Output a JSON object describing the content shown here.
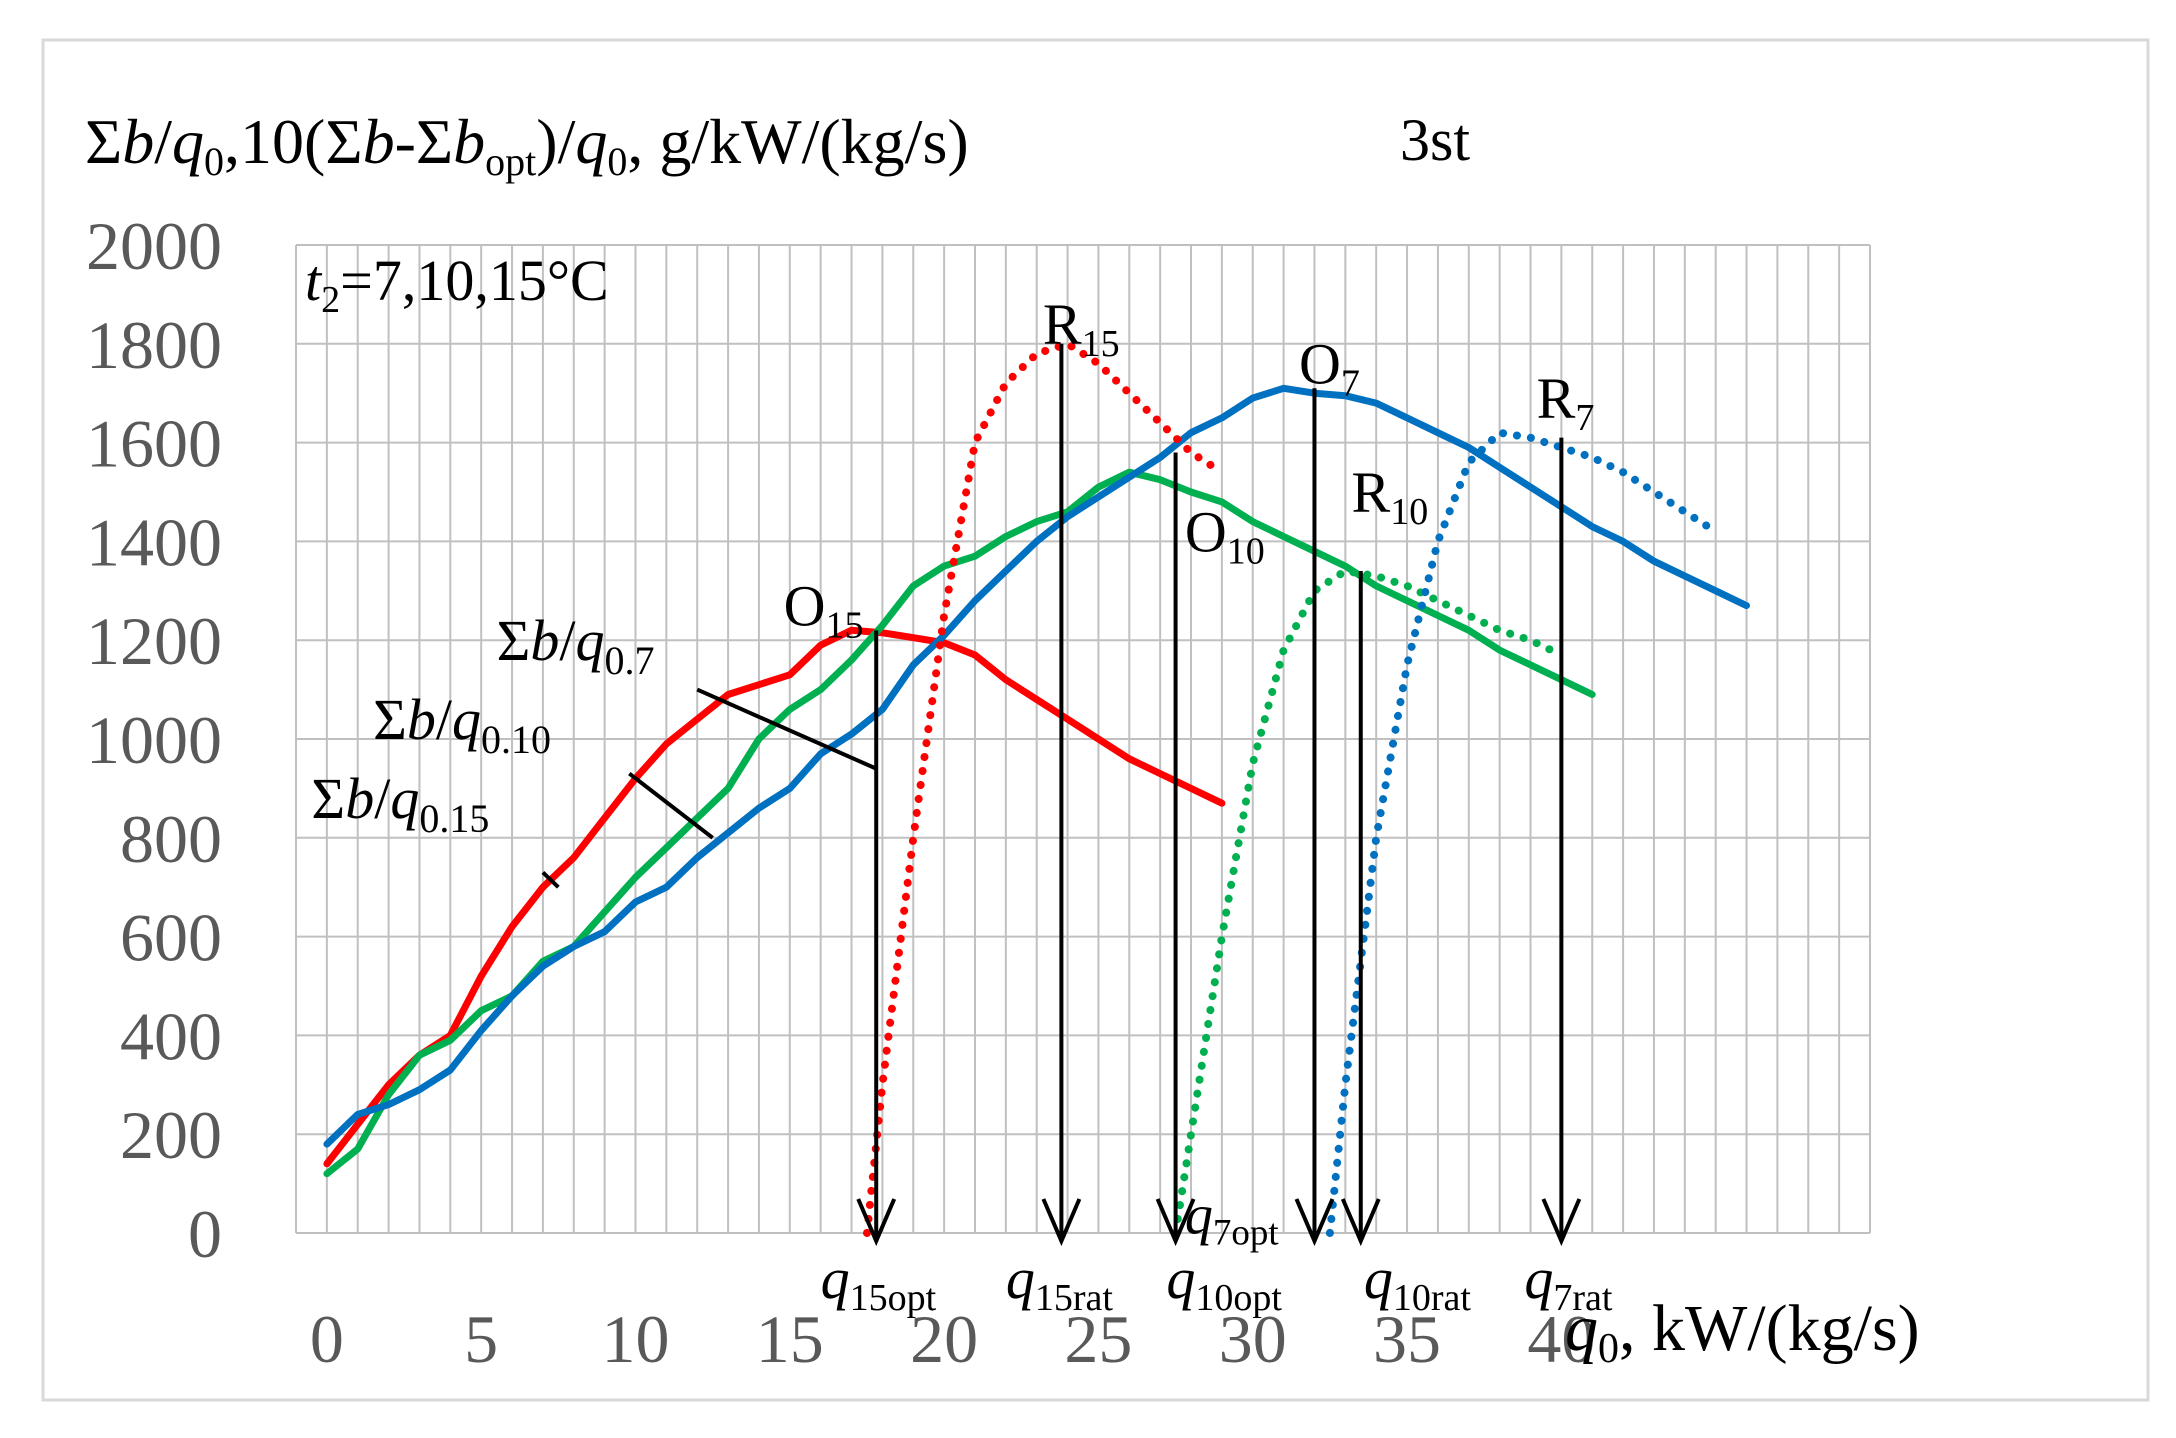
{
  "chart_data": {
    "type": "line",
    "title": "3st",
    "ylabel": {
      "p1": "Σ",
      "p2": "b",
      "p3": "/",
      "p4": "q",
      "p5": "0",
      "p6": ",10(Σ",
      "p7": "b",
      "p8": "-Σ",
      "p9": "b",
      "p10": "opt",
      "p11": ")/",
      "p12": "q",
      "p13": "0",
      "p14": ", g/kW/(kg/s)"
    },
    "xlabel": {
      "var": "q",
      "sub": "0",
      "unit": ", kW/(kg/s)"
    },
    "condition": {
      "var": "t",
      "sub": "2",
      "rest": "=7,10,15°C"
    },
    "xlim": [
      -1,
      50
    ],
    "ylim": [
      0,
      2000
    ],
    "x_ticks": [
      0,
      5,
      10,
      15,
      20,
      25,
      30,
      35,
      40
    ],
    "y_ticks": [
      0,
      200,
      400,
      600,
      800,
      1000,
      1200,
      1400,
      1600,
      1800,
      2000
    ],
    "grid": true,
    "colors": {
      "red": "#ff0000",
      "green": "#00b050",
      "blue": "#0070c0",
      "black": "#000000",
      "grid": "#c0c0c0",
      "tick": "#595959"
    },
    "series": [
      {
        "color": "#ff0000",
        "style": "solid",
        "points": [
          [
            0,
            140
          ],
          [
            1,
            220
          ],
          [
            2,
            300
          ],
          [
            3,
            360
          ],
          [
            4,
            400
          ],
          [
            5,
            520
          ],
          [
            6,
            620
          ],
          [
            7,
            700
          ],
          [
            8,
            760
          ],
          [
            9,
            840
          ],
          [
            10,
            920
          ],
          [
            11,
            990
          ],
          [
            12,
            1040
          ],
          [
            13,
            1090
          ],
          [
            14,
            1110
          ],
          [
            15,
            1130
          ],
          [
            16,
            1190
          ],
          [
            17,
            1220
          ],
          [
            18,
            1215
          ],
          [
            19,
            1205
          ],
          [
            20,
            1195
          ],
          [
            21,
            1170
          ],
          [
            22,
            1120
          ],
          [
            23,
            1080
          ],
          [
            24,
            1040
          ],
          [
            25,
            1000
          ],
          [
            26,
            960
          ],
          [
            27,
            930
          ],
          [
            28,
            900
          ],
          [
            29,
            870
          ]
        ]
      },
      {
        "color": "#00b050",
        "style": "solid",
        "points": [
          [
            0,
            120
          ],
          [
            1,
            170
          ],
          [
            2,
            280
          ],
          [
            3,
            360
          ],
          [
            4,
            390
          ],
          [
            5,
            450
          ],
          [
            6,
            480
          ],
          [
            7,
            550
          ],
          [
            8,
            580
          ],
          [
            9,
            650
          ],
          [
            10,
            720
          ],
          [
            11,
            780
          ],
          [
            12,
            840
          ],
          [
            13,
            900
          ],
          [
            14,
            1000
          ],
          [
            15,
            1060
          ],
          [
            16,
            1100
          ],
          [
            17,
            1160
          ],
          [
            18,
            1230
          ],
          [
            19,
            1310
          ],
          [
            20,
            1350
          ],
          [
            21,
            1370
          ],
          [
            22,
            1410
          ],
          [
            23,
            1440
          ],
          [
            24,
            1460
          ],
          [
            25,
            1510
          ],
          [
            26,
            1540
          ],
          [
            27,
            1525
          ],
          [
            28,
            1500
          ],
          [
            29,
            1480
          ],
          [
            30,
            1440
          ],
          [
            31,
            1410
          ],
          [
            32,
            1380
          ],
          [
            33,
            1350
          ],
          [
            34,
            1310
          ],
          [
            35,
            1280
          ],
          [
            36,
            1250
          ],
          [
            37,
            1220
          ],
          [
            38,
            1180
          ],
          [
            39,
            1150
          ],
          [
            40,
            1120
          ],
          [
            41,
            1090
          ]
        ]
      },
      {
        "color": "#0070c0",
        "style": "solid",
        "points": [
          [
            0,
            180
          ],
          [
            1,
            240
          ],
          [
            2,
            260
          ],
          [
            3,
            290
          ],
          [
            4,
            330
          ],
          [
            5,
            410
          ],
          [
            6,
            480
          ],
          [
            7,
            540
          ],
          [
            8,
            580
          ],
          [
            9,
            610
          ],
          [
            10,
            670
          ],
          [
            11,
            700
          ],
          [
            12,
            760
          ],
          [
            13,
            810
          ],
          [
            14,
            860
          ],
          [
            15,
            900
          ],
          [
            16,
            970
          ],
          [
            17,
            1010
          ],
          [
            18,
            1060
          ],
          [
            19,
            1150
          ],
          [
            20,
            1210
          ],
          [
            21,
            1280
          ],
          [
            22,
            1340
          ],
          [
            23,
            1400
          ],
          [
            24,
            1450
          ],
          [
            25,
            1490
          ],
          [
            26,
            1530
          ],
          [
            27,
            1570
          ],
          [
            28,
            1620
          ],
          [
            29,
            1650
          ],
          [
            30,
            1690
          ],
          [
            31,
            1710
          ],
          [
            32,
            1700
          ],
          [
            33,
            1695
          ],
          [
            34,
            1680
          ],
          [
            35,
            1650
          ],
          [
            36,
            1620
          ],
          [
            37,
            1590
          ],
          [
            38,
            1550
          ],
          [
            39,
            1510
          ],
          [
            40,
            1470
          ],
          [
            41,
            1430
          ],
          [
            42,
            1400
          ],
          [
            43,
            1360
          ],
          [
            44,
            1330
          ],
          [
            45,
            1300
          ],
          [
            46,
            1270
          ]
        ]
      },
      {
        "color": "#ff0000",
        "style": "dotted",
        "points": [
          [
            17.5,
            0
          ],
          [
            18,
            300
          ],
          [
            19,
            800
          ],
          [
            20,
            1250
          ],
          [
            21,
            1600
          ],
          [
            22,
            1720
          ],
          [
            23,
            1780
          ],
          [
            24,
            1800
          ],
          [
            25,
            1760
          ],
          [
            26,
            1700
          ],
          [
            27,
            1640
          ],
          [
            28,
            1580
          ],
          [
            29,
            1540
          ]
        ]
      },
      {
        "color": "#00b050",
        "style": "dotted",
        "points": [
          [
            27.5,
            0
          ],
          [
            28,
            200
          ],
          [
            29,
            600
          ],
          [
            30,
            950
          ],
          [
            31,
            1180
          ],
          [
            32,
            1300
          ],
          [
            33,
            1340
          ],
          [
            34,
            1330
          ],
          [
            35,
            1310
          ],
          [
            36,
            1280
          ],
          [
            37,
            1250
          ],
          [
            38,
            1220
          ],
          [
            39,
            1200
          ],
          [
            40,
            1170
          ]
        ]
      },
      {
        "color": "#0070c0",
        "style": "dotted",
        "points": [
          [
            32.5,
            0
          ],
          [
            33,
            300
          ],
          [
            34,
            800
          ],
          [
            35,
            1150
          ],
          [
            36,
            1400
          ],
          [
            37,
            1560
          ],
          [
            38,
            1620
          ],
          [
            39,
            1610
          ],
          [
            40,
            1590
          ],
          [
            41,
            1570
          ],
          [
            42,
            1540
          ],
          [
            43,
            1500
          ],
          [
            44,
            1460
          ],
          [
            45,
            1420
          ]
        ]
      }
    ],
    "arrows": [
      {
        "x": 17.8,
        "y_from": 1220
      },
      {
        "x": 23.8,
        "y_from": 1800
      },
      {
        "x": 27.5,
        "y_from": 1580
      },
      {
        "x": 32.0,
        "y_from": 1710
      },
      {
        "x": 33.5,
        "y_from": 1340
      },
      {
        "x": 40.0,
        "y_from": 1610
      }
    ],
    "point_labels": [
      {
        "id": "R15",
        "main": "R",
        "sub": "15",
        "x": 23.2,
        "y": 1800
      },
      {
        "id": "O7",
        "main": "O",
        "sub": "7",
        "x": 31.5,
        "y": 1720
      },
      {
        "id": "R7",
        "main": "R",
        "sub": "7",
        "x": 39.2,
        "y": 1650
      },
      {
        "id": "R10",
        "main": "R",
        "sub": "10",
        "x": 33.2,
        "y": 1460
      },
      {
        "id": "O10",
        "main": "O",
        "sub": "10",
        "x": 27.8,
        "y": 1380
      },
      {
        "id": "O15",
        "main": "O",
        "sub": "15",
        "x": 14.8,
        "y": 1230
      }
    ],
    "bottom_labels": [
      {
        "id": "q15opt",
        "main": "q",
        "sub": "15opt",
        "x": 16.0
      },
      {
        "id": "q15rat",
        "main": "q",
        "sub": "15rat",
        "x": 22.0
      },
      {
        "id": "q10opt",
        "main": "q",
        "sub": "10opt",
        "x": 27.2
      },
      {
        "id": "q10rat",
        "main": "q",
        "sub": "10rat",
        "x": 33.6
      },
      {
        "id": "q7rat",
        "main": "q",
        "sub": "7rat",
        "x": 38.8
      }
    ],
    "q7opt_label": {
      "main": "q",
      "sub": "7opt",
      "x": 27.8,
      "y": 80
    },
    "curve_labels": [
      {
        "id": "sb7",
        "p1": "Σ",
        "p2": "b",
        "p3": "/",
        "p4": "q",
        "p5": "0.7",
        "x": 5.5,
        "y": 1160,
        "lx1": 12.0,
        "ly1": 1100,
        "lx2": 17.8,
        "ly2": 940
      },
      {
        "id": "sb10",
        "p1": "Σ",
        "p2": "b",
        "p3": "/",
        "p4": "q",
        "p5": "0.10",
        "x": 1.5,
        "y": 1000,
        "lx1": 9.8,
        "ly1": 930,
        "lx2": 12.5,
        "ly2": 800
      },
      {
        "id": "sb15",
        "p1": "Σ",
        "p2": "b",
        "p3": "/",
        "p4": "q",
        "p5": "0.15",
        "x": -0.5,
        "y": 840,
        "lx1": 7.0,
        "ly1": 730,
        "lx2": 7.5,
        "ly2": 700
      }
    ]
  }
}
